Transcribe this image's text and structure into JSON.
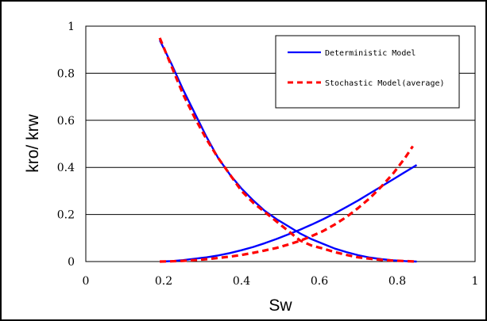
{
  "chart_data": {
    "type": "line",
    "xlabel": "Sw",
    "ylabel": "kro/ krw",
    "xlim": [
      0,
      1
    ],
    "ylim": [
      0,
      1
    ],
    "x_ticks": [
      "0",
      "0.2",
      "0.4",
      "0.6",
      "0.8",
      "1"
    ],
    "y_ticks": [
      "0",
      "0.2",
      "0.4",
      "0.6",
      "0.8",
      "1"
    ],
    "grid": "horizontal",
    "legend_position": "top-right",
    "series": [
      {
        "name": "Deterministic Model",
        "curve": "kro",
        "color": "#0000ff",
        "style": "solid",
        "x": [
          0.19,
          0.22,
          0.25,
          0.28,
          0.31,
          0.34,
          0.37,
          0.4,
          0.43,
          0.46,
          0.49,
          0.52,
          0.55,
          0.58,
          0.61,
          0.64,
          0.67,
          0.7,
          0.73,
          0.76,
          0.79,
          0.82,
          0.85
        ],
        "y": [
          0.94,
          0.84,
          0.73,
          0.63,
          0.53,
          0.44,
          0.37,
          0.31,
          0.26,
          0.215,
          0.18,
          0.15,
          0.12,
          0.095,
          0.075,
          0.055,
          0.04,
          0.027,
          0.017,
          0.01,
          0.005,
          0.002,
          0.0
        ]
      },
      {
        "name": "Deterministic Model",
        "curve": "krw",
        "color": "#0000ff",
        "style": "solid",
        "x": [
          0.19,
          0.22,
          0.25,
          0.28,
          0.31,
          0.34,
          0.37,
          0.4,
          0.43,
          0.46,
          0.49,
          0.52,
          0.55,
          0.58,
          0.61,
          0.64,
          0.67,
          0.7,
          0.73,
          0.76,
          0.79,
          0.82,
          0.85
        ],
        "y": [
          0.0,
          0.002,
          0.006,
          0.012,
          0.018,
          0.026,
          0.036,
          0.048,
          0.062,
          0.078,
          0.096,
          0.115,
          0.135,
          0.157,
          0.18,
          0.205,
          0.232,
          0.26,
          0.29,
          0.32,
          0.35,
          0.38,
          0.41
        ]
      },
      {
        "name": "Stochastic Model(average)",
        "curve": "kro",
        "color": "#ff0000",
        "style": "dashed",
        "x": [
          0.19,
          0.22,
          0.25,
          0.28,
          0.31,
          0.34,
          0.37,
          0.4,
          0.43,
          0.46,
          0.49,
          0.52,
          0.55,
          0.58,
          0.61,
          0.64,
          0.67,
          0.7,
          0.73,
          0.76,
          0.79,
          0.82,
          0.85
        ],
        "y": [
          0.95,
          0.83,
          0.71,
          0.61,
          0.52,
          0.44,
          0.37,
          0.3,
          0.25,
          0.21,
          0.17,
          0.13,
          0.09,
          0.068,
          0.055,
          0.04,
          0.028,
          0.018,
          0.012,
          0.007,
          0.004,
          0.002,
          0.0
        ]
      },
      {
        "name": "Stochastic Model(average)",
        "curve": "krw",
        "color": "#ff0000",
        "style": "dashed",
        "x": [
          0.19,
          0.22,
          0.25,
          0.28,
          0.31,
          0.34,
          0.37,
          0.4,
          0.43,
          0.46,
          0.49,
          0.52,
          0.55,
          0.58,
          0.61,
          0.64,
          0.67,
          0.7,
          0.73,
          0.76,
          0.79,
          0.82,
          0.84
        ],
        "y": [
          0.0,
          0.001,
          0.003,
          0.006,
          0.01,
          0.015,
          0.021,
          0.028,
          0.037,
          0.047,
          0.058,
          0.072,
          0.088,
          0.108,
          0.13,
          0.158,
          0.19,
          0.228,
          0.27,
          0.32,
          0.375,
          0.44,
          0.49
        ]
      }
    ],
    "legend": [
      {
        "label": "Deterministic Model",
        "color": "#0000ff",
        "style": "solid"
      },
      {
        "label": "Stochastic Model(average)",
        "color": "#ff0000",
        "style": "dashed"
      }
    ]
  }
}
